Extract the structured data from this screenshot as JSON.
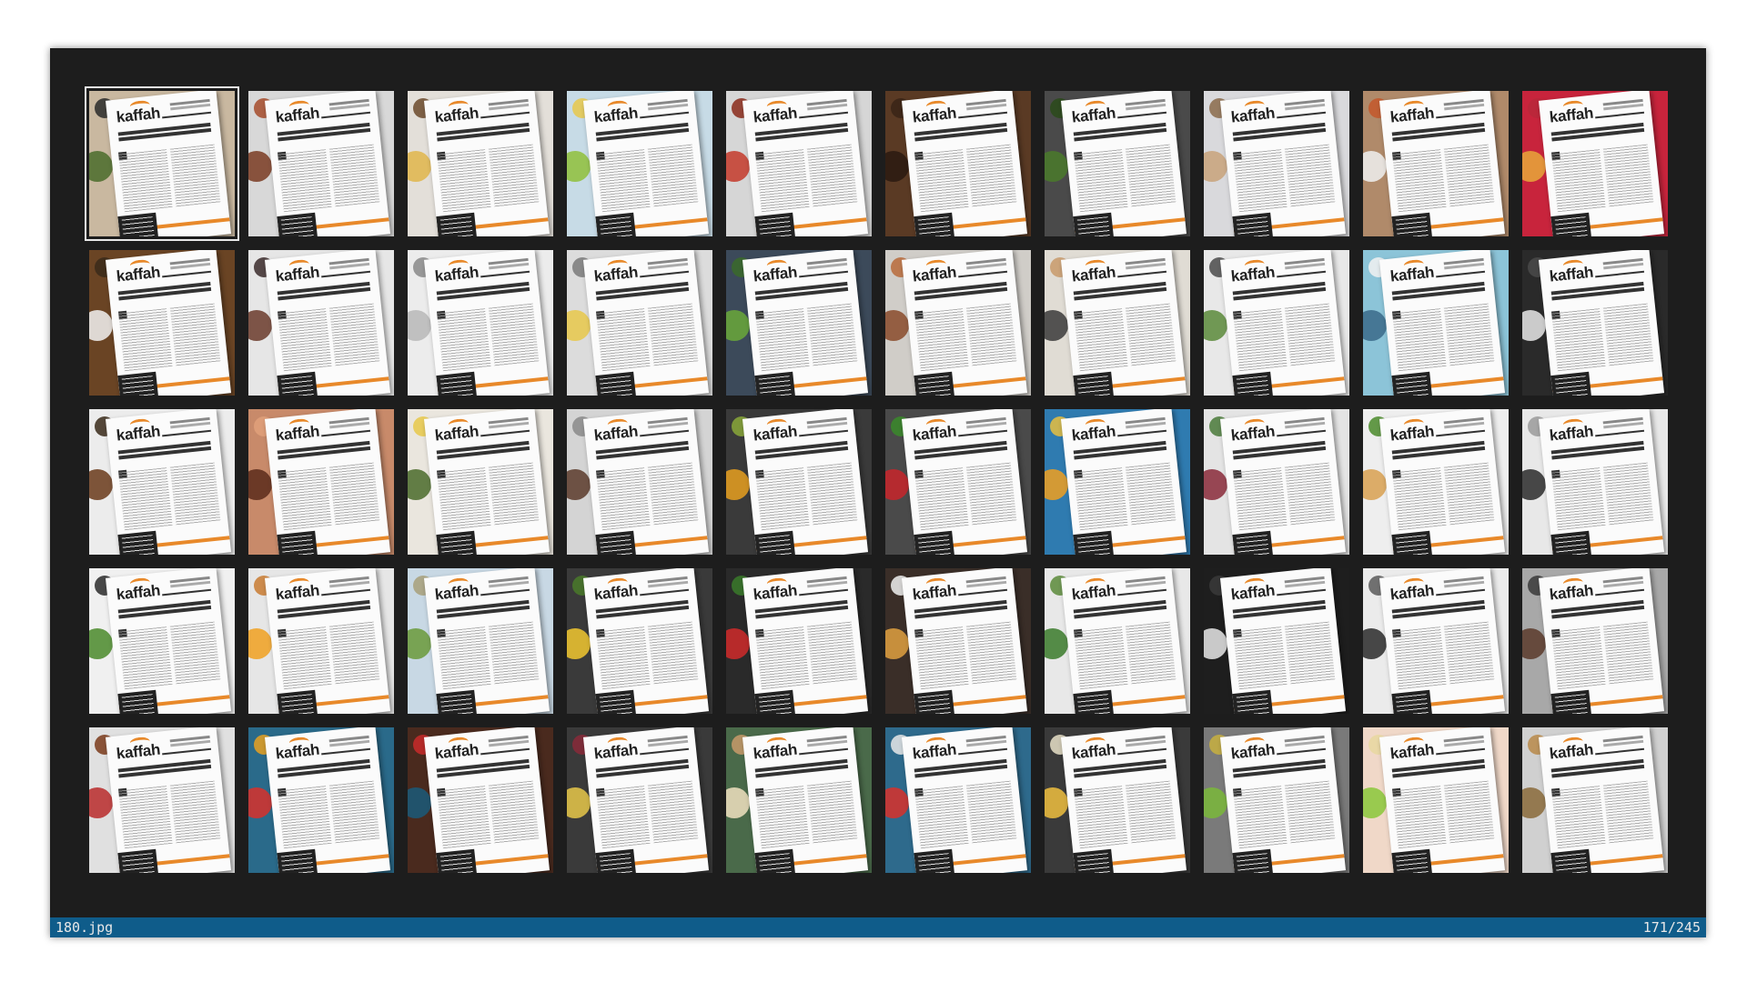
{
  "statusbar": {
    "filename": "180.jpg",
    "position": "171/245"
  },
  "thumbnails": [
    {
      "bg": "#c9b8a0",
      "d1": "#4a6b2a",
      "d2": "#2a2a2a",
      "selected": true
    },
    {
      "bg": "#d8d8d8",
      "d1": "#7a3b22",
      "d2": "#a64b2a"
    },
    {
      "bg": "#e3dfd9",
      "d1": "#e0b64a",
      "d2": "#6b4a2a"
    },
    {
      "bg": "#c7dbe6",
      "d1": "#8fbf3a",
      "d2": "#e8c84a"
    },
    {
      "bg": "#d6d6d6",
      "d1": "#c43a2a",
      "d2": "#8a2a1a"
    },
    {
      "bg": "#5a3a24",
      "d1": "#2a1a10",
      "d2": "#3a2416"
    },
    {
      "bg": "#4a4a4a",
      "d1": "#4a7a2a",
      "d2": "#2a4a1a"
    },
    {
      "bg": "#d9d9dc",
      "d1": "#c8a27a",
      "d2": "#8a6a4a"
    },
    {
      "bg": "#b08a6a",
      "d1": "#f0f0f0",
      "d2": "#c4572a"
    },
    {
      "bg": "#c8243c",
      "d1": "#e8a83a",
      "d2": "#b8283a"
    },
    {
      "bg": "#6a4424",
      "d1": "#f2f2f2",
      "d2": "#3a2a1a"
    },
    {
      "bg": "#e6e6e6",
      "d1": "#6a3a2a",
      "d2": "#3a2a2a"
    },
    {
      "bg": "#ececec",
      "d1": "#b8b8b8",
      "d2": "#8a8a8a"
    },
    {
      "bg": "#dcdcdc",
      "d1": "#e8c84a",
      "d2": "#7a7a7a"
    },
    {
      "bg": "#3c4a5a",
      "d1": "#6aa83a",
      "d2": "#3a6a2a"
    },
    {
      "bg": "#d0cdc8",
      "d1": "#8a4a2a",
      "d2": "#b86a3a"
    },
    {
      "bg": "#e0dcd4",
      "d1": "#3a3a3a",
      "d2": "#c89a6a"
    },
    {
      "bg": "#e8e8e8",
      "d1": "#5a8a3a",
      "d2": "#4a4a4a"
    },
    {
      "bg": "#8cc4d8",
      "d1": "#3a6a8a",
      "d2": "#f2f2f2"
    },
    {
      "bg": "#2a2a2a",
      "d1": "#e8e8e8",
      "d2": "#4a4a4a"
    },
    {
      "bg": "#ececec",
      "d1": "#6a3a1a",
      "d2": "#3a2a1a"
    },
    {
      "bg": "#c88a6a",
      "d1": "#5a2a1a",
      "d2": "#e0a07a"
    },
    {
      "bg": "#eae6de",
      "d1": "#4a6a2a",
      "d2": "#e8c84a"
    },
    {
      "bg": "#d4d4d4",
      "d1": "#5a3a2a",
      "d2": "#8a8a8a"
    },
    {
      "bg": "#3a3a3a",
      "d1": "#e8a020",
      "d2": "#8aa83a"
    },
    {
      "bg": "#4a4a4a",
      "d1": "#c8242a",
      "d2": "#3a8a2a"
    },
    {
      "bg": "#2f7bb0",
      "d1": "#f0a020",
      "d2": "#e8c040"
    },
    {
      "bg": "#e4e4e4",
      "d1": "#8a2a3a",
      "d2": "#4a7a3a"
    },
    {
      "bg": "#eeeeee",
      "d1": "#d8a050",
      "d2": "#4a8a2a"
    },
    {
      "bg": "#e8e8e8",
      "d1": "#2a2a2a",
      "d2": "#9a9a9a"
    },
    {
      "bg": "#f0f0f0",
      "d1": "#4a8a2a",
      "d2": "#2a2a2a"
    },
    {
      "bg": "#e6e6e6",
      "d1": "#f0a020",
      "d2": "#c87a30"
    },
    {
      "bg": "#c8d8e4",
      "d1": "#6a9a3a",
      "d2": "#a8a07a"
    },
    {
      "bg": "#3a3a3a",
      "d1": "#f2c830",
      "d2": "#4a7a2a"
    },
    {
      "bg": "#2a2a2a",
      "d1": "#d02a2a",
      "d2": "#3a7a2a"
    },
    {
      "bg": "#3a2e28",
      "d1": "#e0a040",
      "d2": "#f0f0f0"
    },
    {
      "bg": "#e8e8e8",
      "d1": "#3a7a2a",
      "d2": "#5a8a3a"
    },
    {
      "bg": "#1e1e1e",
      "d1": "#e8e8e8",
      "d2": "#3a3a3a"
    },
    {
      "bg": "#ebebeb",
      "d1": "#2a2a2a",
      "d2": "#5a5a5a"
    },
    {
      "bg": "#a8a8a8",
      "d1": "#5a3a2a",
      "d2": "#3a3a3a"
    },
    {
      "bg": "#e0e0e0",
      "d1": "#b82a2a",
      "d2": "#7a3a1a"
    },
    {
      "bg": "#2a6a8a",
      "d1": "#d8302a",
      "d2": "#e8a020"
    },
    {
      "bg": "#4a2a1e",
      "d1": "#1a5a7a",
      "d2": "#c82a2a"
    },
    {
      "bg": "#3a3a3a",
      "d1": "#e8c84a",
      "d2": "#8a2a3a"
    },
    {
      "bg": "#4a6a4a",
      "d1": "#f0e0c0",
      "d2": "#c89a6a"
    },
    {
      "bg": "#2e6a8c",
      "d1": "#d8302a",
      "d2": "#e8e8e8"
    },
    {
      "bg": "#3a3a3a",
      "d1": "#f0c040",
      "d2": "#e8e0c8"
    },
    {
      "bg": "#7a7a7a",
      "d1": "#7ab83a",
      "d2": "#c8b040"
    },
    {
      "bg": "#f0d8c8",
      "d1": "#8ac83a",
      "d2": "#e8d8a0"
    },
    {
      "bg": "#d0d0d0",
      "d1": "#8a6a3a",
      "d2": "#b88a4a"
    }
  ]
}
